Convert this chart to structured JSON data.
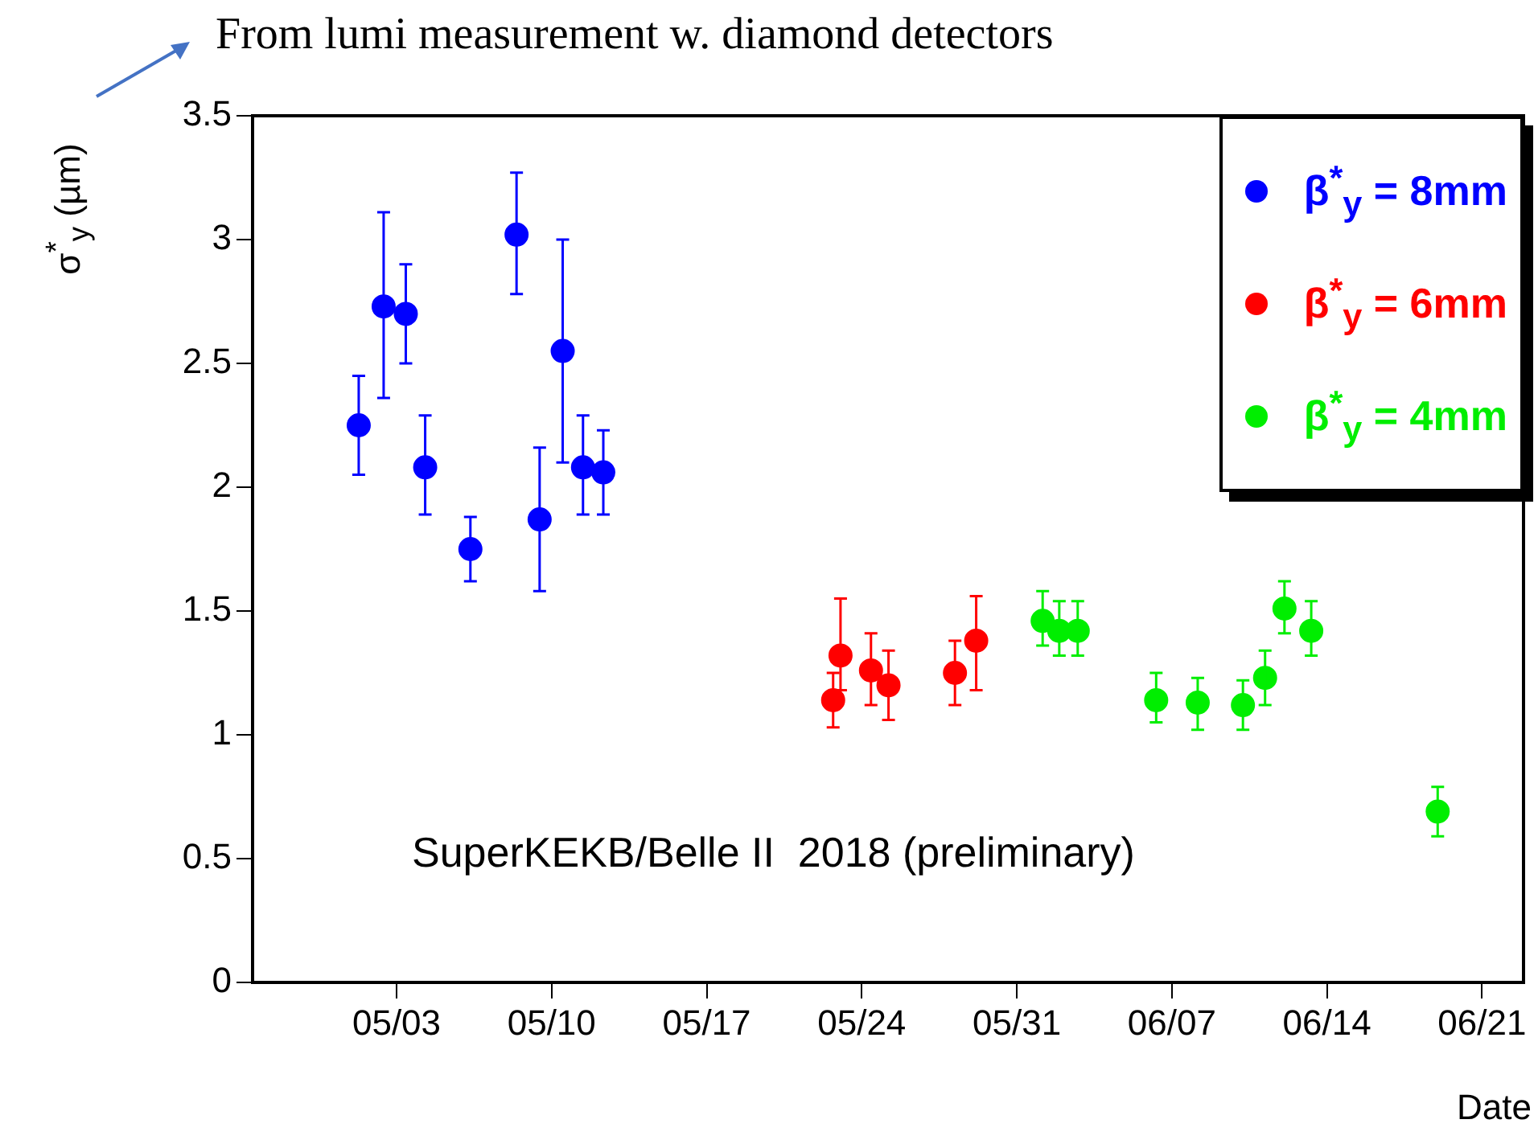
{
  "chart_data": {
    "type": "scatter",
    "xlabel": "Date",
    "ylabel": "σ$^{*}$$_{y}$ (µm)",
    "annotations": [
      "From lumi measurement w. diamond detectors",
      "SuperKEKB/Belle II  2018 (preliminary)"
    ],
    "xlim": [
      "2018-04-26T12:00",
      "2018-06-22T21:00"
    ],
    "xticks": [
      {
        "value": "2018-05-03",
        "label": "05/03"
      },
      {
        "value": "2018-05-10",
        "label": "05/10"
      },
      {
        "value": "2018-05-17",
        "label": "05/17"
      },
      {
        "value": "2018-05-24",
        "label": "05/24"
      },
      {
        "value": "2018-05-31",
        "label": "05/31"
      },
      {
        "value": "2018-06-07",
        "label": "06/07"
      },
      {
        "value": "2018-06-14",
        "label": "06/14"
      },
      {
        "value": "2018-06-21",
        "label": "06/21"
      }
    ],
    "ylim": [
      0,
      3.5
    ],
    "yticks": [
      0,
      0.5,
      1,
      1.5,
      2,
      2.5,
      3,
      3.5
    ],
    "grid": false,
    "legend": "top right",
    "marker": "circle",
    "series": [
      {
        "name": "β$^{*}$$_{y}$ = 8mm",
        "color": "#0000ff",
        "x": [
          "2018-05-01T07:00",
          "2018-05-02T10:00",
          "2018-05-03T10:00",
          "2018-05-04T07:00",
          "2018-05-06T08:00",
          "2018-05-08T10:00",
          "2018-05-09T11:00",
          "2018-05-10T12:00",
          "2018-05-11T10:00",
          "2018-05-12T08:00"
        ],
        "values": [
          2.25,
          2.73,
          2.7,
          2.08,
          1.75,
          3.02,
          1.87,
          2.55,
          2.08,
          2.06
        ],
        "errors": [
          [
            2.05,
            2.45
          ],
          [
            2.36,
            3.11
          ],
          [
            2.5,
            2.9
          ],
          [
            1.89,
            2.29
          ],
          [
            1.62,
            1.88
          ],
          [
            2.78,
            3.27
          ],
          [
            1.58,
            2.16
          ],
          [
            2.1,
            3.0
          ],
          [
            1.89,
            2.29
          ],
          [
            1.89,
            2.23
          ]
        ]
      },
      {
        "name": "β$^{*}$$_{y}$ = 6mm",
        "color": "#ff0000",
        "x": [
          "2018-05-22T17:00",
          "2018-05-23T01:00",
          "2018-05-24T10:00",
          "2018-05-25T05:00",
          "2018-05-28T05:00",
          "2018-05-29T04:00"
        ],
        "values": [
          1.14,
          1.32,
          1.26,
          1.2,
          1.25,
          1.38
        ],
        "errors": [
          [
            1.03,
            1.25
          ],
          [
            1.18,
            1.55
          ],
          [
            1.12,
            1.41
          ],
          [
            1.06,
            1.34
          ],
          [
            1.12,
            1.38
          ],
          [
            1.18,
            1.56
          ]
        ]
      },
      {
        "name": "β$^{*}$$_{y}$ = 4mm",
        "color": "#00ee00",
        "x": [
          "2018-06-01T04:00",
          "2018-06-01T22:00",
          "2018-06-02T18:00",
          "2018-06-06T07:00",
          "2018-06-08T04:00",
          "2018-06-10T05:00",
          "2018-06-11T05:00",
          "2018-06-12T02:00",
          "2018-06-13T07:00",
          "2018-06-19T00:00"
        ],
        "values": [
          1.46,
          1.42,
          1.42,
          1.14,
          1.13,
          1.12,
          1.23,
          1.51,
          1.42,
          0.69
        ],
        "errors": [
          [
            1.36,
            1.58
          ],
          [
            1.32,
            1.54
          ],
          [
            1.32,
            1.54
          ],
          [
            1.05,
            1.25
          ],
          [
            1.02,
            1.23
          ],
          [
            1.02,
            1.22
          ],
          [
            1.12,
            1.34
          ],
          [
            1.41,
            1.62
          ],
          [
            1.32,
            1.54
          ],
          [
            0.59,
            0.79
          ]
        ]
      }
    ]
  }
}
